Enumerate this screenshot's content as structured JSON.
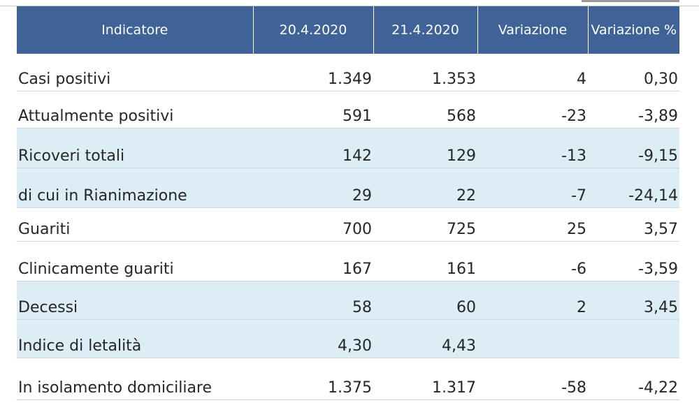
{
  "table": {
    "headers": [
      "Indicatore",
      "20.4.2020",
      "21.4.2020",
      "Variazione",
      "Variazione %"
    ],
    "rows": [
      {
        "label": "Casi positivi",
        "d1": "1.349",
        "d2": "1.353",
        "var": "4",
        "varpct": "0,30",
        "shade": "white"
      },
      {
        "label": "Attualmente positivi",
        "d1": "591",
        "d2": "568",
        "var": "-23",
        "varpct": "-3,89",
        "shade": "white"
      },
      {
        "label": "Ricoveri totali",
        "d1": "142",
        "d2": "129",
        "var": "-13",
        "varpct": "-9,15",
        "shade": "shaded"
      },
      {
        "label": "di cui in Rianimazione",
        "d1": "29",
        "d2": "22",
        "var": "-7",
        "varpct": "-24,14",
        "shade": "shaded"
      },
      {
        "label": "Guariti",
        "d1": "700",
        "d2": "725",
        "var": "25",
        "varpct": "3,57",
        "shade": "white"
      },
      {
        "label": "Clinicamente guariti",
        "d1": "167",
        "d2": "161",
        "var": "-6",
        "varpct": "-3,59",
        "shade": "white"
      },
      {
        "label": "Decessi",
        "d1": "58",
        "d2": "60",
        "var": "2",
        "varpct": "3,45",
        "shade": "shaded"
      },
      {
        "label": "Indice di letalità",
        "d1": "4,30",
        "d2": "4,43",
        "var": "",
        "varpct": "",
        "shade": "shaded"
      },
      {
        "label": "In isolamento domiciliare",
        "d1": "1.375",
        "d2": "1.317",
        "var": "-58",
        "varpct": "-4,22",
        "shade": "white"
      }
    ]
  },
  "colors": {
    "header_bg": "#3f6396",
    "header_text": "#ffffff",
    "row_shaded": "#dcedf5",
    "row_white": "#ffffff",
    "text": "#262626"
  }
}
